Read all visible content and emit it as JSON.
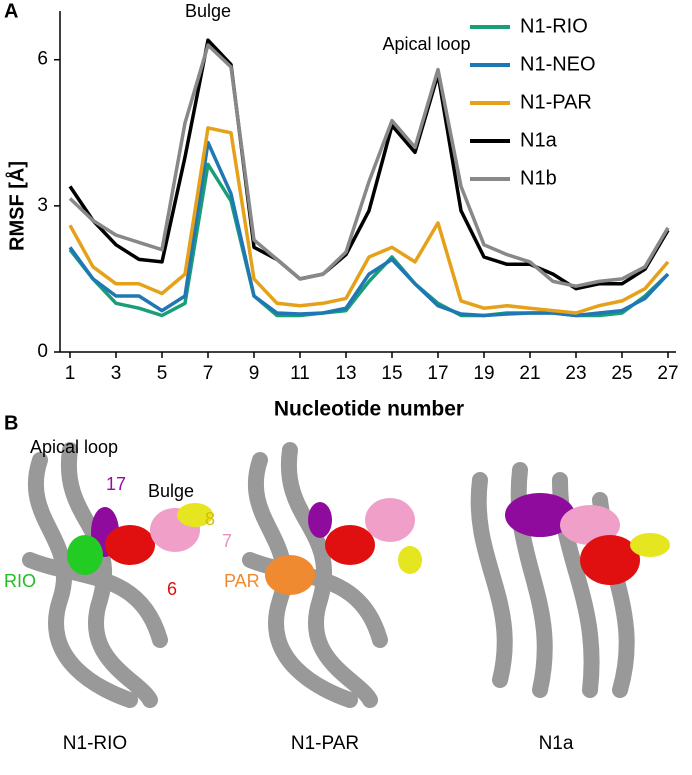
{
  "chart_data": {
    "type": "line",
    "panel": "A",
    "annotations": [
      "Bulge",
      "Apical loop"
    ],
    "xlabel": "Nucleotide  number",
    "ylabel": "RMSF [Å]",
    "x": [
      1,
      2,
      3,
      4,
      5,
      6,
      7,
      8,
      9,
      10,
      11,
      12,
      13,
      14,
      15,
      16,
      17,
      18,
      19,
      20,
      21,
      22,
      23,
      24,
      25,
      26,
      27
    ],
    "xlim": [
      1,
      27
    ],
    "xticks": [
      1,
      3,
      5,
      7,
      9,
      11,
      13,
      15,
      17,
      19,
      21,
      23,
      25,
      27
    ],
    "ylim": [
      0,
      7
    ],
    "yticks": [
      0,
      3,
      6
    ],
    "legend": "upper right",
    "series": [
      {
        "name": "N1-RIO",
        "color": "#1a9e77",
        "values": [
          2.1,
          1.5,
          1.0,
          0.9,
          0.75,
          1.0,
          3.85,
          3.1,
          1.15,
          0.75,
          0.75,
          0.8,
          0.85,
          1.45,
          1.95,
          1.4,
          1.0,
          0.75,
          0.75,
          0.8,
          0.8,
          0.8,
          0.75,
          0.75,
          0.8,
          1.15,
          1.6
        ]
      },
      {
        "name": "N1-NEO",
        "color": "#1f78b4",
        "values": [
          2.15,
          1.5,
          1.15,
          1.15,
          0.85,
          1.15,
          4.3,
          3.25,
          1.15,
          0.8,
          0.78,
          0.8,
          0.9,
          1.6,
          1.9,
          1.4,
          0.95,
          0.78,
          0.75,
          0.78,
          0.8,
          0.8,
          0.75,
          0.8,
          0.85,
          1.1,
          1.6
        ]
      },
      {
        "name": "N1-PAR",
        "color": "#e6a11a",
        "values": [
          2.6,
          1.75,
          1.4,
          1.4,
          1.2,
          1.6,
          4.6,
          4.5,
          1.5,
          1.0,
          0.95,
          1.0,
          1.1,
          1.95,
          2.15,
          1.85,
          2.65,
          1.05,
          0.9,
          0.95,
          0.9,
          0.85,
          0.8,
          0.95,
          1.05,
          1.3,
          1.85
        ]
      },
      {
        "name": "N1a",
        "color": "#000000",
        "values": [
          3.4,
          2.7,
          2.2,
          1.9,
          1.85,
          4.0,
          6.4,
          5.9,
          2.15,
          1.9,
          1.5,
          1.6,
          2.0,
          2.9,
          4.65,
          4.1,
          5.7,
          2.9,
          1.95,
          1.8,
          1.8,
          1.6,
          1.3,
          1.4,
          1.4,
          1.7,
          2.5
        ]
      },
      {
        "name": "N1b",
        "color": "#888888",
        "values": [
          3.15,
          2.7,
          2.4,
          2.25,
          2.1,
          4.7,
          6.3,
          5.85,
          2.3,
          1.9,
          1.5,
          1.6,
          2.05,
          3.5,
          4.75,
          4.2,
          5.8,
          3.4,
          2.2,
          2.0,
          1.85,
          1.45,
          1.35,
          1.45,
          1.5,
          1.75,
          2.55
        ]
      }
    ]
  },
  "panel_b": {
    "panel": "B",
    "apical_loop": "Apical loop",
    "n17": "17",
    "bulge": "Bulge",
    "n8": "8",
    "n7": "7",
    "rio": "RIO",
    "n6": "6",
    "par": "PAR",
    "captions": [
      "N1-RIO",
      "N1-PAR",
      "N1a"
    ]
  }
}
